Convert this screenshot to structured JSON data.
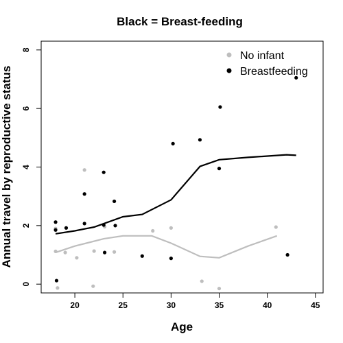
{
  "chart_data": {
    "type": "scatter",
    "title": "Black = Breast-feeding",
    "xlabel": "Age",
    "ylabel": "Annual travel by reproductive status",
    "xlim": [
      16.5,
      45.8
    ],
    "ylim": [
      -0.3,
      8.3
    ],
    "xticks": [
      20,
      25,
      30,
      35,
      40,
      45
    ],
    "yticks": [
      0,
      2,
      4,
      6,
      8
    ],
    "grid": false,
    "legend_position": "top-right",
    "series": [
      {
        "name": "No infant",
        "color": "#bebebe",
        "points": [
          {
            "x": 18,
            "y": 1.12
          },
          {
            "x": 18,
            "y": 1.9
          },
          {
            "x": 18.2,
            "y": -0.13
          },
          {
            "x": 19,
            "y": 1.08
          },
          {
            "x": 20.2,
            "y": 0.9
          },
          {
            "x": 21,
            "y": 3.9
          },
          {
            "x": 21.9,
            "y": -0.07
          },
          {
            "x": 22,
            "y": 1.13
          },
          {
            "x": 23.1,
            "y": 1.96
          },
          {
            "x": 24.1,
            "y": 1.1
          },
          {
            "x": 28.1,
            "y": 1.82
          },
          {
            "x": 30,
            "y": 1.92
          },
          {
            "x": 33.2,
            "y": 0.1
          },
          {
            "x": 35,
            "y": -0.15
          },
          {
            "x": 40.9,
            "y": 1.95
          }
        ],
        "smooth": [
          {
            "x": 18,
            "y": 1.08
          },
          {
            "x": 20,
            "y": 1.3
          },
          {
            "x": 23,
            "y": 1.55
          },
          {
            "x": 25,
            "y": 1.65
          },
          {
            "x": 28,
            "y": 1.65
          },
          {
            "x": 30,
            "y": 1.4
          },
          {
            "x": 33,
            "y": 0.95
          },
          {
            "x": 35,
            "y": 0.9
          },
          {
            "x": 38,
            "y": 1.3
          },
          {
            "x": 41,
            "y": 1.65
          }
        ]
      },
      {
        "name": "Breastfeeding",
        "color": "#000000",
        "points": [
          {
            "x": 18,
            "y": 2.12
          },
          {
            "x": 18,
            "y": 1.85
          },
          {
            "x": 18.1,
            "y": 0.12
          },
          {
            "x": 19.1,
            "y": 1.92
          },
          {
            "x": 21,
            "y": 3.08
          },
          {
            "x": 21,
            "y": 2.07
          },
          {
            "x": 23,
            "y": 3.82
          },
          {
            "x": 23,
            "y": 2.02
          },
          {
            "x": 23.1,
            "y": 1.08
          },
          {
            "x": 24.1,
            "y": 2.83
          },
          {
            "x": 24.2,
            "y": 2.0
          },
          {
            "x": 27,
            "y": 0.96
          },
          {
            "x": 30,
            "y": 0.88
          },
          {
            "x": 30.2,
            "y": 4.8
          },
          {
            "x": 33,
            "y": 4.93
          },
          {
            "x": 35,
            "y": 3.95
          },
          {
            "x": 35.1,
            "y": 6.05
          },
          {
            "x": 42.1,
            "y": 1.0
          },
          {
            "x": 43,
            "y": 7.05
          }
        ],
        "smooth": [
          {
            "x": 18,
            "y": 1.72
          },
          {
            "x": 20,
            "y": 1.82
          },
          {
            "x": 22,
            "y": 1.95
          },
          {
            "x": 25,
            "y": 2.3
          },
          {
            "x": 27,
            "y": 2.38
          },
          {
            "x": 30,
            "y": 2.88
          },
          {
            "x": 33,
            "y": 4.02
          },
          {
            "x": 35,
            "y": 4.25
          },
          {
            "x": 38,
            "y": 4.33
          },
          {
            "x": 42,
            "y": 4.42
          },
          {
            "x": 43,
            "y": 4.4
          }
        ]
      }
    ]
  }
}
